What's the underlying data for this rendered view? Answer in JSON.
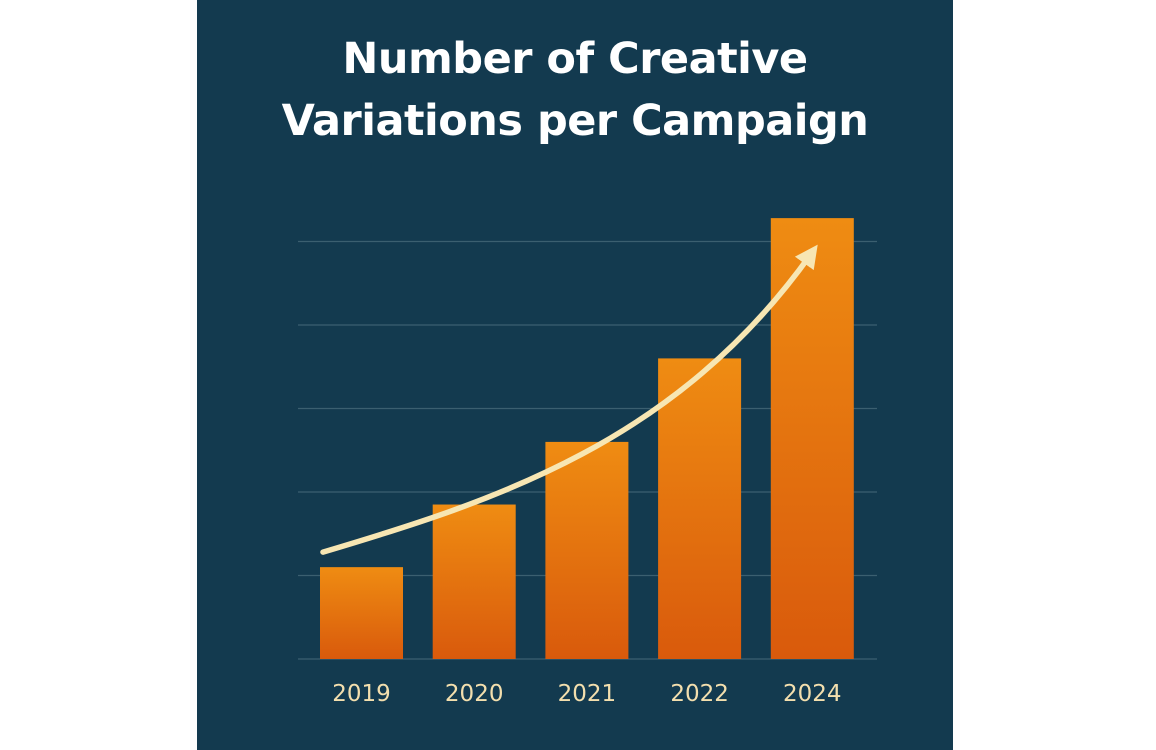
{
  "chart_data": {
    "type": "bar",
    "title_lines": [
      "Number of Creative",
      "Variations per Campaign"
    ],
    "categories": [
      "2019",
      "2020",
      "2021",
      "2022",
      "2024"
    ],
    "values": [
      1.1,
      1.85,
      2.6,
      3.6,
      5.28
    ],
    "xlabel": "",
    "ylabel": "",
    "ylim": [
      0,
      6
    ],
    "yticks_shown": false,
    "grid": true,
    "legend": "none",
    "trend_arrow": true
  },
  "colors": {
    "background": "#133a4f",
    "grid": "#3b5f70",
    "bar_top": "#ef8c12",
    "bar_bottom": "#d95a0c",
    "arrow": "#f7e6b3",
    "tick_text": "#f3dfae",
    "title_text": "#ffffff"
  }
}
